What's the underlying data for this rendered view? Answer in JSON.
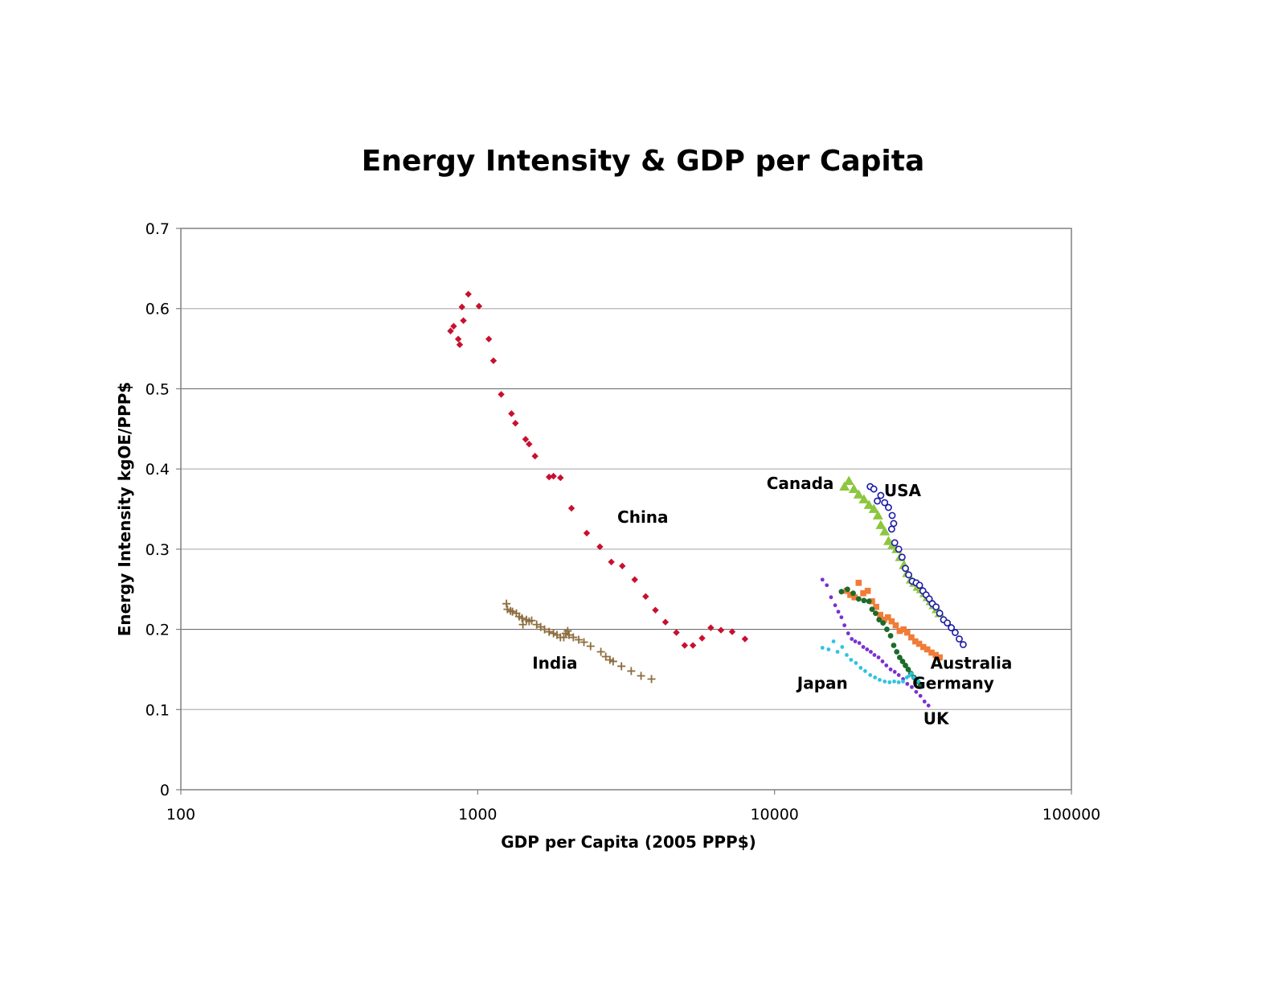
{
  "chart_data": {
    "type": "scatter",
    "title": "Energy Intensity & GDP per Capita",
    "xlabel": "GDP per Capita (2005 PPP$)",
    "ylabel": "Energy Intensity kgOE/PPP$",
    "xscale": "log",
    "xlim": [
      100,
      100000
    ],
    "ylim": [
      0,
      0.7
    ],
    "xticks": [
      "100",
      "1000",
      "10000",
      "100000"
    ],
    "yticks": [
      "0",
      "0.1",
      "0.2",
      "0.3",
      "0.4",
      "0.5",
      "0.6",
      "0.7"
    ],
    "grid": "horizontal",
    "legend": "none (series labeled directly)",
    "series": [
      {
        "name": "China",
        "marker": "diamond",
        "color": "#c8102e",
        "points": [
          [
            810,
            0.572
          ],
          [
            830,
            0.578
          ],
          [
            860,
            0.562
          ],
          [
            870,
            0.555
          ],
          [
            885,
            0.602
          ],
          [
            895,
            0.585
          ],
          [
            930,
            0.618
          ],
          [
            1010,
            0.603
          ],
          [
            1090,
            0.562
          ],
          [
            1130,
            0.535
          ],
          [
            1200,
            0.493
          ],
          [
            1300,
            0.469
          ],
          [
            1340,
            0.457
          ],
          [
            1450,
            0.437
          ],
          [
            1490,
            0.431
          ],
          [
            1560,
            0.416
          ],
          [
            1740,
            0.39
          ],
          [
            1800,
            0.391
          ],
          [
            1900,
            0.389
          ],
          [
            2070,
            0.351
          ],
          [
            2330,
            0.32
          ],
          [
            2580,
            0.303
          ],
          [
            2820,
            0.284
          ],
          [
            3070,
            0.279
          ],
          [
            3380,
            0.262
          ],
          [
            3680,
            0.241
          ],
          [
            3970,
            0.224
          ],
          [
            4290,
            0.209
          ],
          [
            4670,
            0.196
          ],
          [
            4980,
            0.18
          ],
          [
            5310,
            0.18
          ],
          [
            5700,
            0.189
          ],
          [
            6100,
            0.202
          ],
          [
            6600,
            0.199
          ],
          [
            7200,
            0.197
          ],
          [
            7950,
            0.188
          ]
        ]
      },
      {
        "name": "India",
        "marker": "plus",
        "color": "#8c6d3f",
        "points": [
          [
            1250,
            0.232
          ],
          [
            1260,
            0.225
          ],
          [
            1290,
            0.223
          ],
          [
            1310,
            0.222
          ],
          [
            1350,
            0.22
          ],
          [
            1380,
            0.216
          ],
          [
            1410,
            0.214
          ],
          [
            1420,
            0.206
          ],
          [
            1460,
            0.212
          ],
          [
            1490,
            0.21
          ],
          [
            1520,
            0.211
          ],
          [
            1580,
            0.206
          ],
          [
            1630,
            0.203
          ],
          [
            1680,
            0.2
          ],
          [
            1740,
            0.197
          ],
          [
            1800,
            0.195
          ],
          [
            1850,
            0.193
          ],
          [
            1900,
            0.19
          ],
          [
            1950,
            0.19
          ],
          [
            1980,
            0.195
          ],
          [
            2010,
            0.198
          ],
          [
            2030,
            0.193
          ],
          [
            2100,
            0.19
          ],
          [
            2190,
            0.187
          ],
          [
            2280,
            0.184
          ],
          [
            2400,
            0.179
          ],
          [
            2600,
            0.172
          ],
          [
            2700,
            0.166
          ],
          [
            2790,
            0.162
          ],
          [
            2860,
            0.16
          ],
          [
            3050,
            0.154
          ],
          [
            3290,
            0.148
          ],
          [
            3550,
            0.142
          ],
          [
            3850,
            0.138
          ]
        ]
      },
      {
        "name": "Canada",
        "marker": "triangle",
        "color": "#8dc63f",
        "points": [
          [
            17200,
            0.378
          ],
          [
            17800,
            0.385
          ],
          [
            18500,
            0.375
          ],
          [
            19200,
            0.368
          ],
          [
            20000,
            0.362
          ],
          [
            20800,
            0.355
          ],
          [
            21600,
            0.35
          ],
          [
            22300,
            0.342
          ],
          [
            22800,
            0.33
          ],
          [
            23500,
            0.322
          ],
          [
            24200,
            0.31
          ],
          [
            25000,
            0.305
          ],
          [
            25800,
            0.3
          ],
          [
            26500,
            0.29
          ],
          [
            27300,
            0.28
          ],
          [
            28000,
            0.27
          ],
          [
            28800,
            0.262
          ],
          [
            29600,
            0.258
          ],
          [
            30400,
            0.253
          ],
          [
            31200,
            0.25
          ],
          [
            32000,
            0.245
          ],
          [
            32800,
            0.24
          ],
          [
            33600,
            0.235
          ],
          [
            34400,
            0.23
          ],
          [
            35200,
            0.225
          ],
          [
            36000,
            0.22
          ]
        ]
      },
      {
        "name": "USA",
        "marker": "open-circle",
        "color": "#1a1aa6",
        "points": [
          [
            21000,
            0.378
          ],
          [
            21600,
            0.375
          ],
          [
            22200,
            0.36
          ],
          [
            22800,
            0.367
          ],
          [
            23500,
            0.358
          ],
          [
            24200,
            0.352
          ],
          [
            24900,
            0.342
          ],
          [
            25200,
            0.332
          ],
          [
            24800,
            0.325
          ],
          [
            25400,
            0.308
          ],
          [
            26200,
            0.3
          ],
          [
            26900,
            0.29
          ],
          [
            27600,
            0.276
          ],
          [
            28300,
            0.268
          ],
          [
            29100,
            0.26
          ],
          [
            30000,
            0.258
          ],
          [
            30800,
            0.255
          ],
          [
            31600,
            0.248
          ],
          [
            32400,
            0.243
          ],
          [
            33200,
            0.238
          ],
          [
            34000,
            0.232
          ],
          [
            35000,
            0.228
          ],
          [
            36000,
            0.22
          ],
          [
            37100,
            0.212
          ],
          [
            38200,
            0.208
          ],
          [
            39400,
            0.202
          ],
          [
            40600,
            0.196
          ],
          [
            41900,
            0.188
          ],
          [
            43200,
            0.181
          ]
        ]
      },
      {
        "name": "Australia",
        "marker": "square",
        "color": "#f07c37",
        "points": [
          [
            17500,
            0.248
          ],
          [
            18000,
            0.243
          ],
          [
            18600,
            0.24
          ],
          [
            19200,
            0.258
          ],
          [
            19900,
            0.245
          ],
          [
            20600,
            0.248
          ],
          [
            21300,
            0.235
          ],
          [
            22000,
            0.228
          ],
          [
            22700,
            0.218
          ],
          [
            23400,
            0.212
          ],
          [
            24100,
            0.215
          ],
          [
            24800,
            0.21
          ],
          [
            25600,
            0.205
          ],
          [
            26400,
            0.198
          ],
          [
            27200,
            0.2
          ],
          [
            28000,
            0.196
          ],
          [
            28900,
            0.19
          ],
          [
            29800,
            0.185
          ],
          [
            30700,
            0.182
          ],
          [
            31700,
            0.178
          ],
          [
            32700,
            0.175
          ],
          [
            33800,
            0.171
          ],
          [
            34900,
            0.168
          ],
          [
            36000,
            0.165
          ]
        ]
      },
      {
        "name": "Germany",
        "marker": "dot",
        "color": "#1d6b2b",
        "points": [
          [
            16800,
            0.247
          ],
          [
            17600,
            0.25
          ],
          [
            18400,
            0.245
          ],
          [
            19200,
            0.238
          ],
          [
            20000,
            0.236
          ],
          [
            20800,
            0.235
          ],
          [
            21300,
            0.225
          ],
          [
            21900,
            0.22
          ],
          [
            22500,
            0.212
          ],
          [
            23200,
            0.208
          ],
          [
            23900,
            0.2
          ],
          [
            24600,
            0.192
          ],
          [
            25200,
            0.18
          ],
          [
            25800,
            0.172
          ],
          [
            26400,
            0.165
          ],
          [
            27000,
            0.16
          ],
          [
            27600,
            0.155
          ],
          [
            28200,
            0.15
          ],
          [
            28800,
            0.145
          ],
          [
            29500,
            0.14
          ],
          [
            30200,
            0.135
          ],
          [
            31000,
            0.13
          ]
        ]
      },
      {
        "name": "UK",
        "marker": "small-dot",
        "color": "#7b2fd1",
        "points": [
          [
            14500,
            0.262
          ],
          [
            15000,
            0.255
          ],
          [
            15500,
            0.24
          ],
          [
            16000,
            0.23
          ],
          [
            16400,
            0.222
          ],
          [
            16800,
            0.215
          ],
          [
            17200,
            0.205
          ],
          [
            17700,
            0.195
          ],
          [
            18200,
            0.188
          ],
          [
            18700,
            0.185
          ],
          [
            19300,
            0.183
          ],
          [
            19900,
            0.178
          ],
          [
            20500,
            0.175
          ],
          [
            21100,
            0.172
          ],
          [
            21700,
            0.168
          ],
          [
            22400,
            0.165
          ],
          [
            23100,
            0.16
          ],
          [
            23800,
            0.155
          ],
          [
            24600,
            0.15
          ],
          [
            25400,
            0.147
          ],
          [
            26200,
            0.143
          ],
          [
            27100,
            0.138
          ],
          [
            28000,
            0.132
          ],
          [
            29000,
            0.128
          ],
          [
            30000,
            0.122
          ],
          [
            31000,
            0.117
          ],
          [
            32000,
            0.11
          ],
          [
            33000,
            0.105
          ]
        ]
      },
      {
        "name": "Japan",
        "marker": "small-dot",
        "color": "#2ec4e0",
        "points": [
          [
            14500,
            0.177
          ],
          [
            15200,
            0.175
          ],
          [
            15800,
            0.185
          ],
          [
            16300,
            0.172
          ],
          [
            16900,
            0.178
          ],
          [
            17500,
            0.168
          ],
          [
            18100,
            0.162
          ],
          [
            18800,
            0.158
          ],
          [
            19500,
            0.152
          ],
          [
            20200,
            0.148
          ],
          [
            21000,
            0.143
          ],
          [
            21800,
            0.14
          ],
          [
            22600,
            0.137
          ],
          [
            23500,
            0.135
          ],
          [
            24400,
            0.134
          ],
          [
            25300,
            0.135
          ],
          [
            26200,
            0.134
          ],
          [
            27100,
            0.135
          ],
          [
            27900,
            0.14
          ],
          [
            28400,
            0.142
          ],
          [
            28900,
            0.145
          ],
          [
            29400,
            0.14
          ],
          [
            30000,
            0.138
          ],
          [
            30600,
            0.135
          ]
        ]
      }
    ],
    "annotations": [
      {
        "text": "China",
        "x": 3600,
        "y": 0.34
      },
      {
        "text": "India",
        "x": 1820,
        "y": 0.158
      },
      {
        "text": "Canada",
        "x": 12200,
        "y": 0.382
      },
      {
        "text": "USA",
        "x": 27000,
        "y": 0.373
      },
      {
        "text": "Australia",
        "x": 46000,
        "y": 0.158
      },
      {
        "text": "Germany",
        "x": 40000,
        "y": 0.133
      },
      {
        "text": "Japan",
        "x": 14500,
        "y": 0.133
      },
      {
        "text": "UK",
        "x": 35000,
        "y": 0.089
      }
    ]
  }
}
